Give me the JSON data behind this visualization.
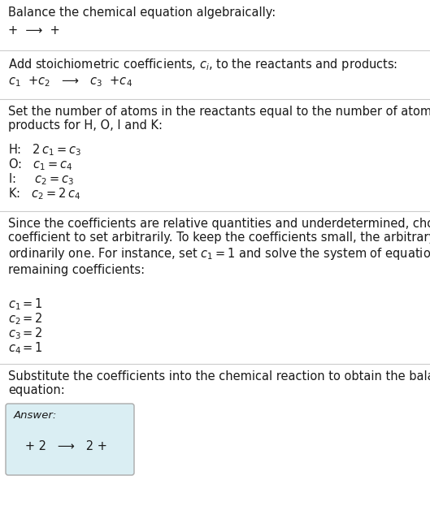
{
  "title": "Balance the chemical equation algebraically:",
  "eq0": "+  ⟶  +",
  "section1_label": "Add stoichiometric coefficients, $c_i$, to the reactants and products:",
  "eq1": "$c_1$  +$c_2$   ⟶   $c_3$  +$c_4$",
  "section2_label": "Set the number of atoms in the reactants equal to the number of atoms in the\nproducts for H, O, I and K:",
  "h_eq": "H:   $2\\,c_1 = c_3$",
  "o_eq": "O:   $c_1 = c_4$",
  "i_eq": "I:     $c_2 = c_3$",
  "k_eq": "K:   $c_2 = 2\\,c_4$",
  "section3_label": "Since the coefficients are relative quantities and underdetermined, choose a\ncoefficient to set arbitrarily. To keep the coefficients small, the arbitrary value is\nordinarily one. For instance, set $c_1 = 1$ and solve the system of equations for the\nremaining coefficients:",
  "c1": "$c_1 = 1$",
  "c2": "$c_2 = 2$",
  "c3": "$c_3 = 2$",
  "c4": "$c_4 = 1$",
  "section4_label": "Substitute the coefficients into the chemical reaction to obtain the balanced\nequation:",
  "answer_label": "Answer:",
  "answer_eq": "   + 2   ⟶   2 +",
  "bg_color": "#ffffff",
  "text_color": "#1a1a1a",
  "box_face_color": "#daeef3",
  "box_edge_color": "#aaaaaa",
  "sep_color": "#cccccc",
  "font_size": 10.5,
  "label_font_size": 9.5
}
